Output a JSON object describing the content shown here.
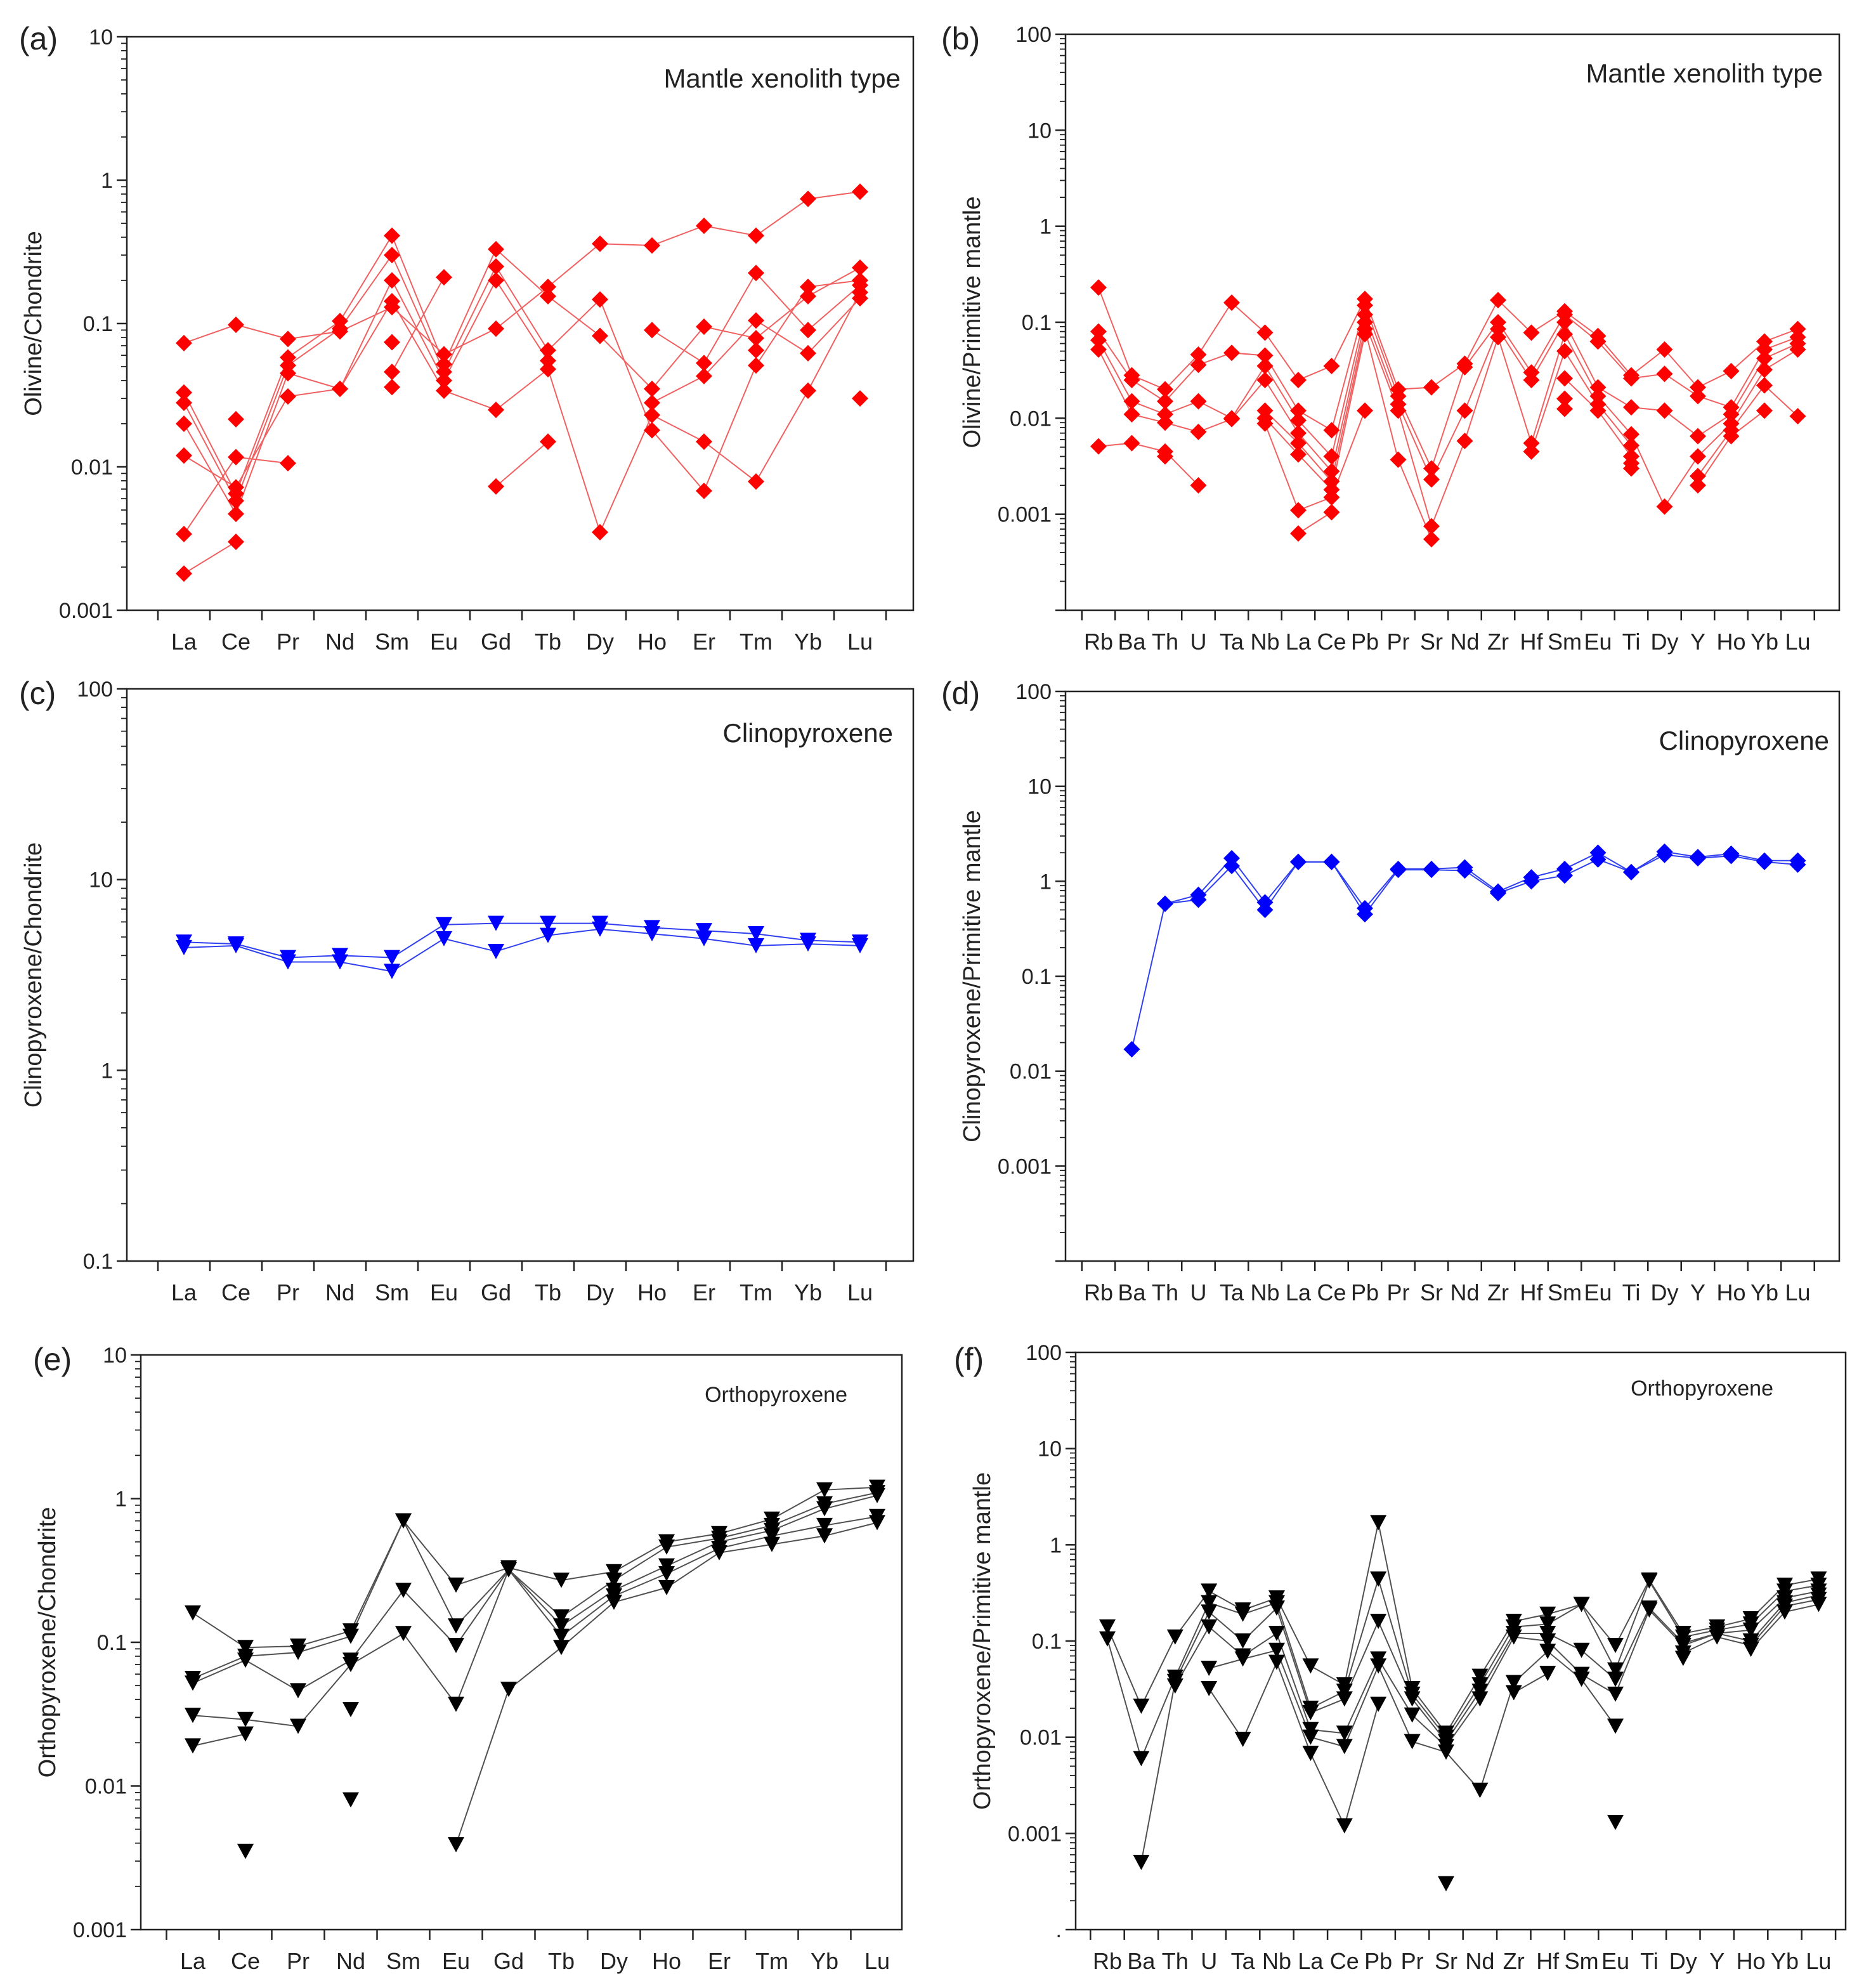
{
  "figure": {
    "colors": {
      "red": "#ff0000",
      "blue": "#0000ff",
      "black": "#000000",
      "redLine": "#f06060",
      "blueLine": "#3040f0",
      "blackLine": "#505050"
    }
  },
  "chart_data": [
    {
      "id": "a",
      "panel_label": "(a)",
      "type": "line",
      "title": "Mantle xenolith type",
      "ylabel": "Olivine/Chondrite",
      "xlabel": "",
      "yscale": "log",
      "ylim": [
        0.001,
        10
      ],
      "ytick_labels": [
        "0.001",
        "0.01",
        "0.1",
        "1",
        "10"
      ],
      "categories": [
        "La",
        "Ce",
        "Pr",
        "Nd",
        "Sm",
        "Eu",
        "Gd",
        "Tb",
        "Dy",
        "Ho",
        "Er",
        "Tm",
        "Yb",
        "Lu"
      ],
      "marker": "diamond",
      "color": "red",
      "series": [
        {
          "name": "s1",
          "values": [
            0.073,
            0.098,
            0.078,
            0.088,
            0.13,
            0.061,
            0.092,
            0.18,
            0.36,
            0.35,
            0.48,
            0.41,
            0.74,
            0.83
          ]
        },
        {
          "name": "s2",
          "values": [
            0.033,
            0.0065,
            0.058,
            0.104,
            0.41,
            0.052,
            0.33,
            0.155,
            0.082,
            0.035,
            0.095,
            0.079,
            0.155,
            0.245
          ]
        },
        {
          "name": "s3",
          "values": [
            0.028,
            0.0058,
            0.051,
            0.092,
            0.3,
            0.046,
            0.25,
            0.065,
            0.147,
            0.018,
            0.0068,
            0.051,
            0.18,
            0.2
          ]
        },
        {
          "name": "s4",
          "values": [
            0.02,
            0.0047,
            0.045,
            0.035,
            0.2,
            0.04,
            0.2,
            0.055,
            null,
            0.09,
            0.053,
            0.225,
            0.09,
            0.185
          ]
        },
        {
          "name": "s5",
          "values": [
            0.012,
            0.0072,
            0.031,
            0.035,
            0.143,
            0.034,
            0.025,
            0.048,
            0.0035,
            0.023,
            0.015,
            0.0079,
            0.034,
            0.165
          ]
        },
        {
          "name": "s6",
          "values": [
            0.0034,
            0.0117,
            0.0106,
            null,
            0.074,
            null,
            0.0073,
            0.015,
            null,
            0.028,
            0.043,
            0.105,
            0.062,
            0.15
          ]
        },
        {
          "name": "s7",
          "values": [
            0.0018,
            0.003,
            null,
            null,
            0.046,
            0.21,
            null,
            null,
            null,
            null,
            null,
            0.065,
            null,
            0.03
          ]
        },
        {
          "name": "s8",
          "values": [
            null,
            0.0215,
            null,
            null,
            0.036,
            null,
            null,
            null,
            null,
            null,
            null,
            null,
            null,
            null
          ]
        }
      ]
    },
    {
      "id": "b",
      "panel_label": "(b)",
      "type": "line",
      "title": "Mantle xenolith type",
      "ylabel": "Olivine/Primitive mantle",
      "xlabel": "",
      "yscale": "log",
      "ylim": [
        0.0001,
        100
      ],
      "ytick_labels": [
        "",
        "0.001",
        "0.01",
        "0.1",
        "1",
        "10",
        "100"
      ],
      "categories": [
        "Rb",
        "Ba",
        "Th",
        "U",
        "Ta",
        "Nb",
        "La",
        "Ce",
        "Pb",
        "Pr",
        "Sr",
        "Nd",
        "Zr",
        "Hf",
        "Sm",
        "Eu",
        "Ti",
        "Dy",
        "Y",
        "Ho",
        "Yb",
        "Lu"
      ],
      "marker": "diamond",
      "color": "red",
      "series": [
        {
          "name": "s1",
          "values": [
            0.23,
            0.028,
            0.02,
            0.046,
            0.16,
            0.078,
            0.025,
            0.035,
            0.175,
            0.02,
            0.021,
            0.037,
            0.17,
            0.078,
            0.13,
            0.072,
            0.028,
            0.052,
            0.021,
            0.031,
            0.063,
            0.085
          ]
        },
        {
          "name": "s2",
          "values": [
            0.08,
            0.025,
            0.015,
            0.036,
            0.048,
            0.045,
            0.012,
            0.0075,
            0.15,
            0.017,
            0.003,
            0.034,
            0.1,
            0.03,
            0.12,
            0.063,
            0.026,
            0.029,
            0.017,
            0.013,
            0.052,
            0.07
          ]
        },
        {
          "name": "s3",
          "values": [
            0.065,
            0.015,
            0.011,
            0.015,
            0.01,
            0.035,
            0.0095,
            0.004,
            0.12,
            0.014,
            0.0023,
            0.012,
            0.085,
            0.025,
            0.1,
            0.021,
            0.013,
            0.012,
            0.0065,
            0.011,
            0.042,
            0.06
          ]
        },
        {
          "name": "s4",
          "values": [
            0.052,
            0.011,
            0.009,
            0.0072,
            0.0098,
            0.025,
            0.007,
            0.0028,
            0.1,
            0.012,
            0.00075,
            0.0058,
            0.07,
            0.0055,
            0.075,
            0.017,
            0.0068,
            0.0012,
            0.004,
            0.0088,
            0.032,
            0.052
          ]
        },
        {
          "name": "s5",
          "values": [
            0.0051,
            0.0055,
            0.0045,
            0.002,
            null,
            0.012,
            0.0055,
            0.0022,
            0.085,
            0.0037,
            0.00055,
            null,
            null,
            0.0045,
            0.05,
            0.014,
            0.0052,
            null,
            0.0025,
            0.0075,
            0.022,
            0.0105
          ]
        },
        {
          "name": "s6",
          "values": [
            null,
            null,
            0.004,
            null,
            null,
            0.01,
            0.0042,
            0.0018,
            0.075,
            null,
            null,
            null,
            null,
            null,
            0.026,
            0.012,
            0.004,
            null,
            0.002,
            0.0065,
            0.012,
            null
          ]
        },
        {
          "name": "s7",
          "values": [
            null,
            null,
            null,
            null,
            null,
            0.0088,
            0.0011,
            0.0015,
            0.012,
            null,
            null,
            null,
            null,
            null,
            0.016,
            null,
            0.0034,
            null,
            null,
            null,
            null,
            null
          ]
        },
        {
          "name": "s8",
          "values": [
            null,
            null,
            null,
            null,
            null,
            null,
            0.00063,
            0.00105,
            null,
            null,
            null,
            null,
            null,
            null,
            0.0125,
            null,
            0.003,
            null,
            null,
            null,
            null,
            null
          ]
        }
      ]
    },
    {
      "id": "c",
      "panel_label": "(c)",
      "type": "line",
      "title": "Clinopyroxene",
      "ylabel": "Clinopyroxene/Chondrite",
      "xlabel": "",
      "yscale": "log",
      "ylim": [
        0.1,
        100
      ],
      "ytick_labels": [
        "0.1",
        "1",
        "10",
        "100"
      ],
      "categories": [
        "La",
        "Ce",
        "Pr",
        "Nd",
        "Sm",
        "Eu",
        "Gd",
        "Tb",
        "Dy",
        "Ho",
        "Er",
        "Tm",
        "Yb",
        "Lu"
      ],
      "marker": "triangle-down",
      "color": "blue",
      "series": [
        {
          "name": "s1",
          "values": [
            4.7,
            4.6,
            3.9,
            4.0,
            3.9,
            5.8,
            5.9,
            5.9,
            5.9,
            5.6,
            5.4,
            5.2,
            4.8,
            4.7
          ]
        },
        {
          "name": "s2",
          "values": [
            4.4,
            4.5,
            3.7,
            3.7,
            3.3,
            4.9,
            4.2,
            5.1,
            5.5,
            5.2,
            4.9,
            4.5,
            4.6,
            4.5
          ]
        }
      ]
    },
    {
      "id": "d",
      "panel_label": "(d)",
      "type": "line",
      "title": "Clinopyroxene",
      "ylabel": "Clinopyroxene/Primitive mantle",
      "xlabel": "",
      "yscale": "log",
      "ylim": [
        0.0001,
        100
      ],
      "ytick_labels": [
        "",
        "0.001",
        "0.01",
        "0.1",
        "1",
        "10",
        "100"
      ],
      "categories": [
        "Rb",
        "Ba",
        "Th",
        "U",
        "Ta",
        "Nb",
        "La",
        "Ce",
        "Pb",
        "Pr",
        "Sr",
        "Nd",
        "Zr",
        "Hf",
        "Sm",
        "Eu",
        "Ti",
        "Dy",
        "Y",
        "Ho",
        "Yb",
        "Lu"
      ],
      "marker": "diamond",
      "color": "blue",
      "series": [
        {
          "name": "s1",
          "values": [
            null,
            0.017,
            0.58,
            0.72,
            1.75,
            0.6,
            1.6,
            1.6,
            0.52,
            1.35,
            1.35,
            1.4,
            0.78,
            1.1,
            1.35,
            2.0,
            1.25,
            2.05,
            1.8,
            1.95,
            1.65,
            1.65
          ]
        },
        {
          "name": "s2",
          "values": [
            null,
            null,
            0.58,
            0.64,
            1.45,
            0.5,
            1.6,
            1.6,
            0.45,
            1.32,
            1.32,
            1.3,
            0.75,
            1.0,
            1.15,
            1.7,
            1.25,
            1.9,
            1.75,
            1.85,
            1.6,
            1.5
          ]
        }
      ]
    },
    {
      "id": "e",
      "panel_label": "(e)",
      "type": "line",
      "title": "Orthopyroxene",
      "ylabel": "Orthopyroxene/Chondrite",
      "xlabel": "",
      "yscale": "log",
      "ylim": [
        0.001,
        10
      ],
      "ytick_labels": [
        "0.001",
        "0.01",
        "0.1",
        "1",
        "10"
      ],
      "categories": [
        "La",
        "Ce",
        "Pr",
        "Nd",
        "Sm",
        "Eu",
        "Gd",
        "Tb",
        "Dy",
        "Ho",
        "Er",
        "Tm",
        "Yb",
        "Lu"
      ],
      "marker": "triangle-down",
      "color": "black",
      "series": [
        {
          "name": "s1",
          "values": [
            0.16,
            0.092,
            0.094,
            0.12,
            0.7,
            0.25,
            0.33,
            0.27,
            0.31,
            0.5,
            0.57,
            0.72,
            1.15,
            1.2
          ]
        },
        {
          "name": "s2",
          "values": [
            0.056,
            0.08,
            0.085,
            0.11,
            0.7,
            0.13,
            0.32,
            0.15,
            0.27,
            0.46,
            0.53,
            0.65,
            0.92,
            1.1
          ]
        },
        {
          "name": "s3",
          "values": [
            0.052,
            0.075,
            0.046,
            0.075,
            0.23,
            0.095,
            0.32,
            0.13,
            0.23,
            0.34,
            0.5,
            0.6,
            0.85,
            1.05
          ]
        },
        {
          "name": "s4",
          "values": [
            0.031,
            0.029,
            0.026,
            0.07,
            0.115,
            0.037,
            0.32,
            0.11,
            0.21,
            0.3,
            0.45,
            0.55,
            0.65,
            0.75
          ]
        },
        {
          "name": "s5",
          "values": [
            0.019,
            0.023,
            null,
            0.034,
            null,
            0.0039,
            0.047,
            0.092,
            0.19,
            0.24,
            0.42,
            0.48,
            0.55,
            0.68
          ]
        },
        {
          "name": "s6",
          "values": [
            null,
            0.0035,
            null,
            0.008,
            null,
            null,
            null,
            null,
            null,
            null,
            null,
            null,
            null,
            null
          ]
        }
      ]
    },
    {
      "id": "f",
      "panel_label": "(f)",
      "type": "line",
      "title": "Orthopyroxene",
      "ylabel": "Orthopyroxene/Primitive mantle",
      "xlabel": "",
      "yscale": "log",
      "ylim": [
        0.0001,
        100
      ],
      "ytick_labels": [
        ".",
        "0.001",
        "0.01",
        "0.1",
        "1",
        "10",
        "100"
      ],
      "categories": [
        "Rb",
        "Ba",
        "Th",
        "U",
        "Ta",
        "Nb",
        "La",
        "Ce",
        "Pb",
        "Pr",
        "Sr",
        "Nd",
        "Zr",
        "Hf",
        "Sm",
        "Eu",
        "Ti",
        "Dy",
        "Y",
        "Ho",
        "Yb",
        "Lu"
      ],
      "marker": "triangle-down",
      "color": "black",
      "series": [
        {
          "name": "s1",
          "values": [
            0.14,
            0.021,
            0.11,
            0.33,
            0.21,
            0.28,
            0.055,
            0.035,
            1.7,
            0.032,
            0.011,
            0.043,
            0.16,
            0.19,
            0.24,
            0.09,
            0.43,
            0.12,
            0.14,
            0.17,
            0.38,
            0.44
          ]
        },
        {
          "name": "s2",
          "values": [
            0.105,
            0.006,
            0.042,
            0.25,
            0.19,
            0.25,
            0.02,
            0.03,
            0.44,
            0.028,
            0.01,
            0.035,
            0.14,
            0.15,
            0.24,
            0.05,
            0.42,
            0.11,
            0.13,
            0.15,
            0.33,
            0.38
          ]
        },
        {
          "name": "s3",
          "values": [
            null,
            0.0005,
            0.038,
            0.2,
            0.1,
            0.22,
            0.018,
            0.025,
            0.16,
            0.025,
            0.009,
            0.03,
            0.12,
            0.12,
            0.08,
            0.04,
            0.22,
            0.095,
            0.12,
            0.13,
            0.28,
            0.33
          ]
        },
        {
          "name": "s4",
          "values": [
            null,
            null,
            0.034,
            0.14,
            0.07,
            0.12,
            0.012,
            0.011,
            0.065,
            0.017,
            0.008,
            0.025,
            0.11,
            0.1,
            0.045,
            0.028,
            0.21,
            0.09,
            0.12,
            0.1,
            0.25,
            0.3
          ]
        },
        {
          "name": "s5",
          "values": [
            null,
            null,
            null,
            0.052,
            0.065,
            0.08,
            0.01,
            0.008,
            0.055,
            0.009,
            0.007,
            0.0028,
            0.037,
            0.078,
            0.04,
            0.013,
            null,
            0.075,
            0.11,
            0.09,
            0.23,
            0.27
          ]
        },
        {
          "name": "s6",
          "values": [
            null,
            null,
            null,
            0.032,
            0.0095,
            0.06,
            0.0068,
            0.0012,
            0.022,
            null,
            0.0003,
            null,
            0.029,
            0.046,
            null,
            0.0013,
            null,
            0.066,
            null,
            0.082,
            0.2,
            0.24
          ]
        }
      ]
    }
  ]
}
